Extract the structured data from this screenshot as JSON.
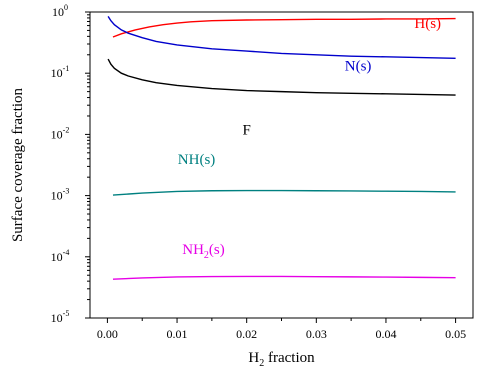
{
  "chart_data": {
    "type": "line",
    "title": "",
    "xlabel": {
      "main": "H",
      "sub": "2",
      "rest": " fraction"
    },
    "ylabel": "Surface coverage fraction",
    "xlim": [
      -0.0025,
      0.0525
    ],
    "ylim": [
      1e-05,
      1
    ],
    "yscale": "log",
    "x_ticks": [
      {
        "value": 0,
        "label": "0.00"
      },
      {
        "value": 0.01,
        "label": "0.01"
      },
      {
        "value": 0.02,
        "label": "0.02"
      },
      {
        "value": 0.03,
        "label": "0.03"
      },
      {
        "value": 0.04,
        "label": "0.04"
      },
      {
        "value": 0.05,
        "label": "0.05"
      }
    ],
    "y_ticks": [
      {
        "value": 1,
        "base": "10",
        "exp": "0"
      },
      {
        "value": 0.1,
        "base": "10",
        "exp": "-1"
      },
      {
        "value": 0.01,
        "base": "10",
        "exp": "-2"
      },
      {
        "value": 0.001,
        "base": "10",
        "exp": "-3"
      },
      {
        "value": 0.0001,
        "base": "10",
        "exp": "-4"
      },
      {
        "value": 1e-05,
        "base": "10",
        "exp": "-5"
      }
    ],
    "grid": false,
    "series": [
      {
        "name": {
          "main": "H(s)",
          "sub": "",
          "rest": ""
        },
        "color": "#ff0000",
        "label_at": [
          0.046,
          0.55
        ],
        "x": [
          0.0008,
          0.002,
          0.004,
          0.006,
          0.008,
          0.01,
          0.012,
          0.015,
          0.02,
          0.025,
          0.03,
          0.035,
          0.04,
          0.045,
          0.05
        ],
        "y": [
          0.39,
          0.44,
          0.51,
          0.57,
          0.62,
          0.66,
          0.69,
          0.72,
          0.74,
          0.75,
          0.76,
          0.76,
          0.77,
          0.77,
          0.78
        ]
      },
      {
        "name": {
          "main": "N(s)",
          "sub": "",
          "rest": ""
        },
        "color": "#0000cc",
        "label_at": [
          0.036,
          0.11
        ],
        "x": [
          0.0001,
          0.0005,
          0.001,
          0.002,
          0.003,
          0.005,
          0.007,
          0.01,
          0.015,
          0.02,
          0.025,
          0.03,
          0.035,
          0.04,
          0.045,
          0.05
        ],
        "y": [
          0.85,
          0.72,
          0.62,
          0.51,
          0.45,
          0.38,
          0.33,
          0.29,
          0.25,
          0.23,
          0.21,
          0.2,
          0.19,
          0.185,
          0.18,
          0.175
        ]
      },
      {
        "name": {
          "main": "F",
          "sub": "",
          "rest": ""
        },
        "color": "#000000",
        "label_at": [
          0.02,
          0.01
        ],
        "x": [
          0.0001,
          0.0005,
          0.001,
          0.002,
          0.003,
          0.005,
          0.007,
          0.01,
          0.015,
          0.02,
          0.025,
          0.03,
          0.035,
          0.04,
          0.045,
          0.05
        ],
        "y": [
          0.17,
          0.14,
          0.12,
          0.1,
          0.09,
          0.078,
          0.07,
          0.063,
          0.056,
          0.052,
          0.05,
          0.048,
          0.047,
          0.046,
          0.045,
          0.044
        ]
      },
      {
        "name": {
          "main": "NH(s)",
          "sub": "",
          "rest": ""
        },
        "color": "#008080",
        "label_at": [
          0.0128,
          0.0033
        ],
        "x": [
          0.0008,
          0.005,
          0.01,
          0.015,
          0.02,
          0.025,
          0.03,
          0.035,
          0.04,
          0.045,
          0.05
        ],
        "y": [
          0.00102,
          0.0011,
          0.00117,
          0.0012,
          0.00121,
          0.00121,
          0.0012,
          0.00119,
          0.00118,
          0.00117,
          0.00115
        ]
      },
      {
        "name": {
          "main": "NH",
          "sub": "2",
          "rest": "(s)"
        },
        "color": "#e600e6",
        "label_at": [
          0.0138,
          0.000112
        ],
        "x": [
          0.0008,
          0.005,
          0.01,
          0.015,
          0.02,
          0.025,
          0.03,
          0.035,
          0.04,
          0.045,
          0.05
        ],
        "y": [
          4.3e-05,
          4.52e-05,
          4.68e-05,
          4.76e-05,
          4.78e-05,
          4.77e-05,
          4.74e-05,
          4.7e-05,
          4.66e-05,
          4.61e-05,
          4.56e-05
        ]
      }
    ]
  }
}
